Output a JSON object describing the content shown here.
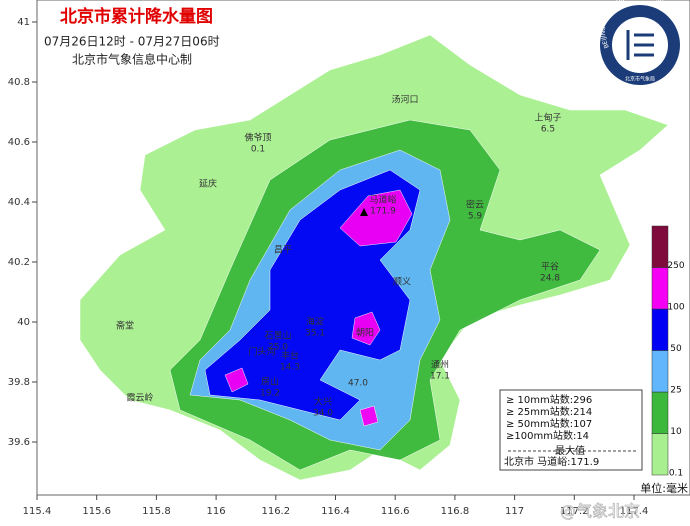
{
  "title": "北京市累计降水量图",
  "period": "07月26日12时 - 07月27日06时",
  "producer": "北京市气象信息中心制",
  "logo": {
    "text_en": "BEIJING METEOROLOGICAL SERVICE",
    "text_cn": "北京市气象局"
  },
  "axes": {
    "lon_ticks": [
      115.4,
      115.6,
      115.8,
      116,
      116.2,
      116.4,
      116.6,
      116.8,
      117,
      117.2,
      117.4
    ],
    "lat_ticks": [
      41,
      40.8,
      40.6,
      40.4,
      40.2,
      40,
      39.8,
      39.6
    ]
  },
  "stations": [
    {
      "name": "汤河口"
    },
    {
      "name": "上甸子",
      "value": "6.5"
    },
    {
      "name": "佛爷顶",
      "value": "0.1"
    },
    {
      "name": "延庆"
    },
    {
      "name": "密云",
      "value": "5.9"
    },
    {
      "name": "马道峪",
      "value": "171.9"
    },
    {
      "name": "昌平"
    },
    {
      "name": "顺义"
    },
    {
      "name": "平谷",
      "value": "24.8"
    },
    {
      "name": "海淀",
      "value": "35.1"
    },
    {
      "name": "石景山",
      "value": "25.0"
    },
    {
      "name": "门头沟"
    },
    {
      "name": "丰台",
      "value": "14.3"
    },
    {
      "name": "朝阳"
    },
    {
      "name": "斋堂"
    },
    {
      "name": "霞云岭"
    },
    {
      "name": "房山",
      "value": "19.2"
    },
    {
      "name": "大兴",
      "value": "34.0"
    },
    {
      "value": "47.0"
    },
    {
      "name": "通州",
      "value": "17.1"
    }
  ],
  "stats": {
    "lines": [
      "≥ 10mm站数:296",
      "≥ 25mm站数:214",
      "≥ 50mm站数:107",
      "≥100mm站数:14"
    ],
    "max_title": "最大值",
    "max_line": "北京市 马道峪:171.9"
  },
  "legend": {
    "levels": [
      0.1,
      10,
      25,
      50,
      100,
      250
    ],
    "colors": [
      "#a8f08f",
      "#3cb83c",
      "#62b6fb",
      "#0000f5",
      "#f500f5",
      "#7f0a3c"
    ],
    "unit": "单位:毫米"
  },
  "watermark": "@气象北京"
}
